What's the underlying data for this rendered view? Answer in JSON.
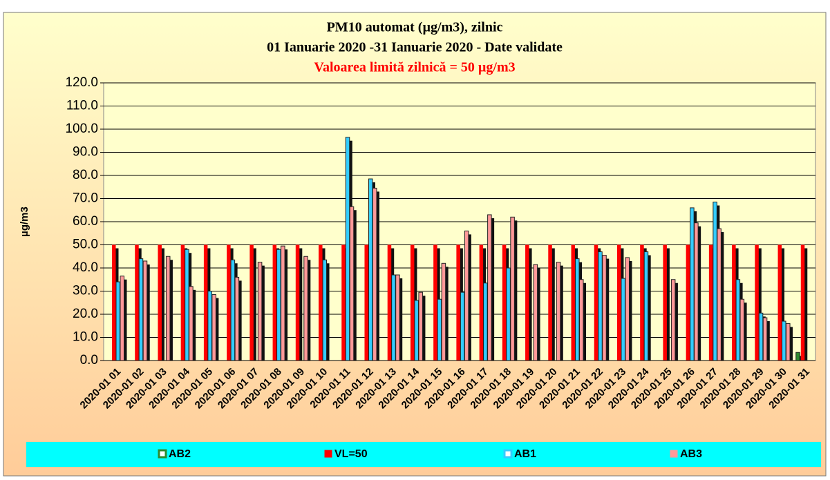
{
  "chart_data": {
    "type": "bar",
    "title": "PM10 automat (µg/m3), zilnic",
    "subtitle": "01 Ianuarie 2020 -31 Ianuarie  2020 - Date validate",
    "annotation": "Valoarea limită zilnică = 50 µg/m3",
    "y_label": "µg/m3",
    "categories": [
      "2020-01 01",
      "2020-01 02",
      "2020-01 03",
      "2020-01 04",
      "2020-01 05",
      "2020-01 06",
      "2020-01 07",
      "2020-01 08",
      "2020-01 09",
      "2020-01 10",
      "2020-01 11",
      "2020-01 12",
      "2020-01 13",
      "2020-01 14",
      "2020-01 15",
      "2020-01 16",
      "2020-01 17",
      "2020-01 18",
      "2020-01 19",
      "2020-01 20",
      "2020-01 21",
      "2020-01 22",
      "2020-01 23",
      "2020-01 24",
      "2020-01 25",
      "2020-01 26",
      "2020-01 27",
      "2020-01 28",
      "2020-01 29",
      "2020-01 30",
      "2020-01 31"
    ],
    "series": [
      {
        "name": "AB2",
        "color": "#2e8b2e",
        "values": [
          null,
          null,
          null,
          null,
          null,
          null,
          null,
          null,
          null,
          null,
          null,
          null,
          null,
          null,
          null,
          null,
          null,
          null,
          null,
          null,
          null,
          null,
          null,
          null,
          null,
          null,
          null,
          null,
          null,
          null,
          3.5
        ]
      },
      {
        "name": "VL=50",
        "color": "#ff0000",
        "values": [
          50,
          50,
          50,
          50,
          50,
          50,
          50,
          50,
          50,
          50,
          50,
          50,
          50,
          50,
          50,
          50,
          50,
          50,
          50,
          50,
          50,
          50,
          50,
          50,
          50,
          50,
          50,
          50,
          50,
          50,
          50
        ]
      },
      {
        "name": "AB1",
        "color": "#33ccff",
        "values": [
          34,
          44,
          null,
          48,
          30,
          43.5,
          null,
          48,
          null,
          43.5,
          96.5,
          78.5,
          37,
          26,
          26.5,
          29.5,
          33.5,
          40,
          null,
          null,
          44,
          47,
          35.5,
          47,
          null,
          66,
          68.5,
          35,
          20.5,
          17,
          null
        ]
      },
      {
        "name": "AB3",
        "color": "#ff9999",
        "values": [
          36.5,
          43,
          45,
          32,
          28.5,
          36,
          42.5,
          49.5,
          45,
          null,
          66.5,
          74.5,
          37,
          29.5,
          42,
          56,
          63,
          62,
          41.5,
          42.5,
          35,
          45.5,
          44.5,
          null,
          35,
          59.5,
          57,
          26.5,
          18.5,
          16,
          null
        ]
      }
    ],
    "ylim": [
      0,
      120
    ],
    "yticks": [
      {
        "value": 0,
        "label": "0.0"
      },
      {
        "value": 10,
        "label": "10.0"
      },
      {
        "value": 20,
        "label": "20.0"
      },
      {
        "value": 30,
        "label": "30.0"
      },
      {
        "value": 40,
        "label": "40.0"
      },
      {
        "value": 50,
        "label": "50.0"
      },
      {
        "value": 60,
        "label": "60.0"
      },
      {
        "value": 70,
        "label": "70.0"
      },
      {
        "value": 80,
        "label": "80.0"
      },
      {
        "value": 90,
        "label": "90.0"
      },
      {
        "value": 100,
        "label": "100.0"
      },
      {
        "value": 110,
        "label": "110.0"
      },
      {
        "value": 120,
        "label": "120.0"
      }
    ],
    "grid": true
  }
}
